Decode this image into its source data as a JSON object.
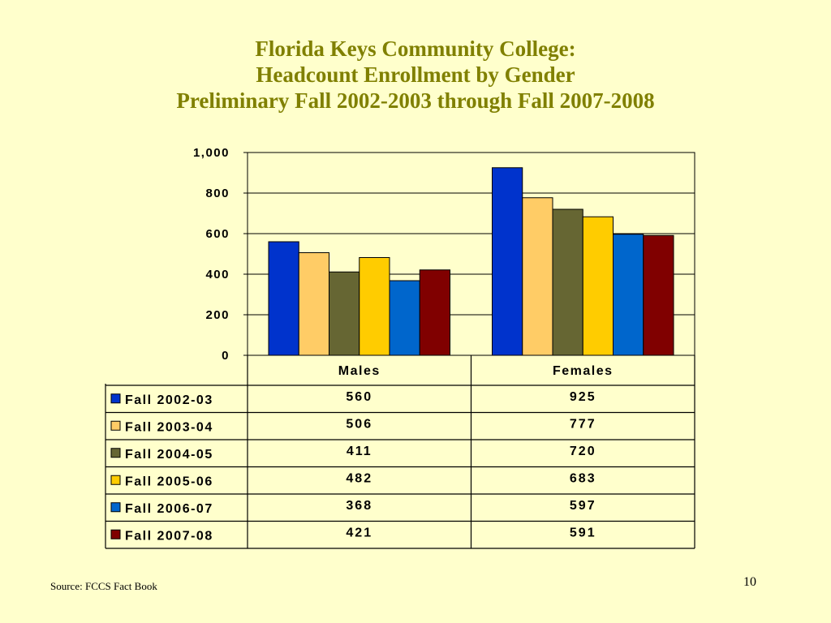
{
  "colors": {
    "background": "#FFFFCC",
    "title": "#808000"
  },
  "chart_data": {
    "type": "bar",
    "title_lines": [
      "Florida Keys Community College:",
      "Headcount Enrollment by Gender",
      "Preliminary Fall 2002-2003 through Fall 2007-2008"
    ],
    "categories": [
      "Males",
      "Females"
    ],
    "series": [
      {
        "name": "Fall 2002-03",
        "color": "#0033CC",
        "values": [
          560,
          925
        ],
        "labels": [
          "560",
          "925"
        ]
      },
      {
        "name": "Fall 2003-04",
        "color": "#FFCC66",
        "values": [
          506,
          777
        ],
        "labels": [
          "506",
          "777"
        ]
      },
      {
        "name": "Fall 2004-05",
        "color": "#666633",
        "values": [
          411,
          720
        ],
        "labels": [
          "411",
          "720"
        ]
      },
      {
        "name": "Fall 2005-06",
        "color": "#FFCC00",
        "values": [
          482,
          683
        ],
        "labels": [
          "482",
          "683"
        ]
      },
      {
        "name": "Fall 2006-07",
        "color": "#0066CC",
        "values": [
          368,
          597
        ],
        "labels": [
          "368",
          "597"
        ]
      },
      {
        "name": "Fall 2007-08",
        "color": "#800000",
        "values": [
          421,
          591
        ],
        "labels": [
          "421",
          "591"
        ]
      }
    ],
    "ylim": [
      0,
      1000
    ],
    "yticks": [
      0,
      200,
      400,
      600,
      800,
      1000
    ],
    "ytick_labels": [
      "0",
      "200",
      "400",
      "600",
      "800",
      "1,000"
    ],
    "grid": true,
    "legend": "data-table-below"
  },
  "footer": {
    "source": "Source: FCCS Fact Book",
    "page_number": "10"
  }
}
